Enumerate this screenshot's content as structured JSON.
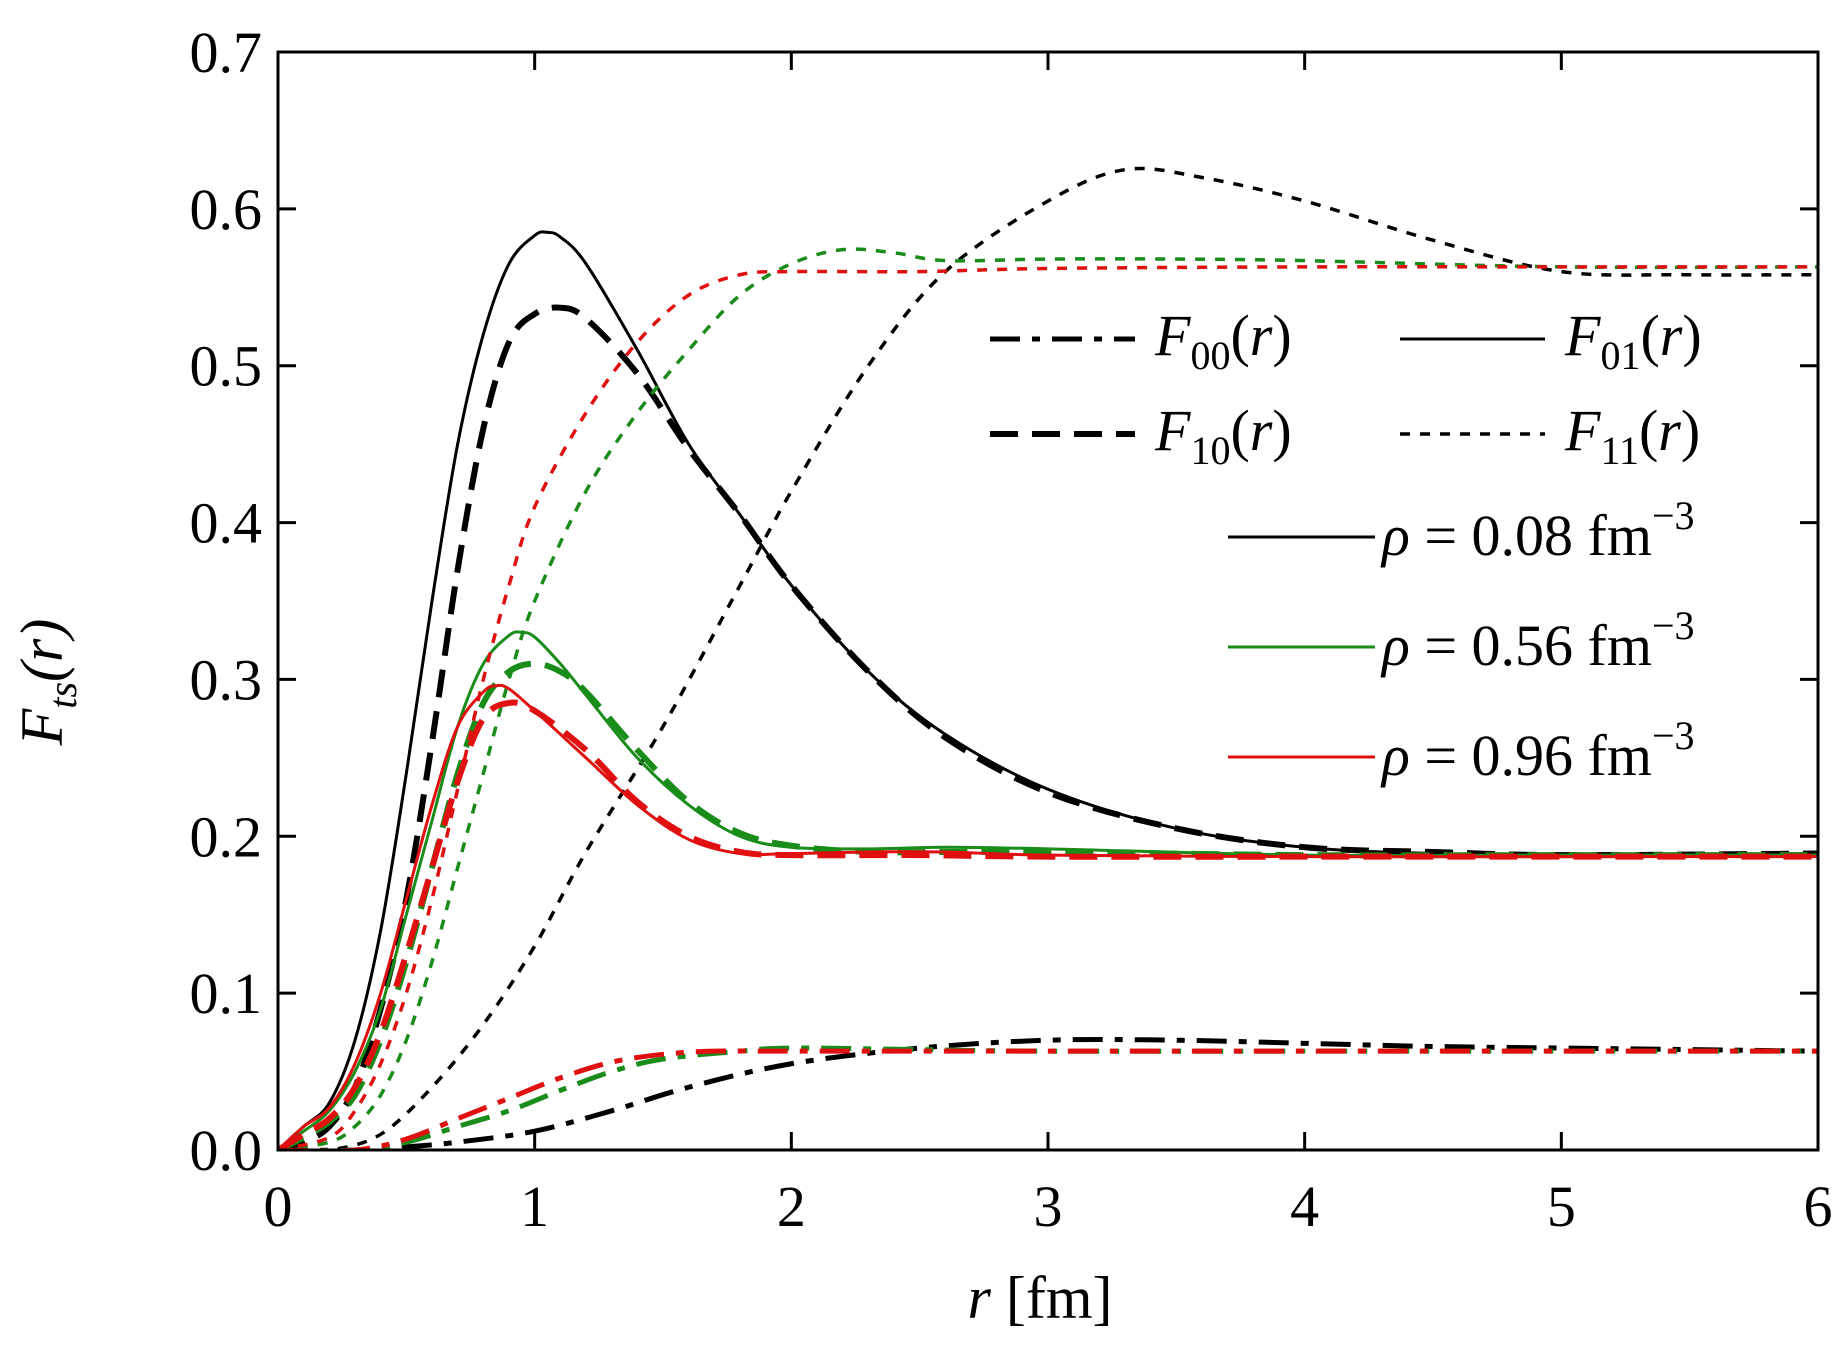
{
  "chart_data": {
    "type": "line",
    "title": "",
    "xlabel": {
      "var": "r",
      "rest": " [fm]"
    },
    "ylabel": {
      "main": "F",
      "sub": "ts",
      "arg": "(r)"
    },
    "xlim": [
      0,
      6
    ],
    "ylim": [
      0,
      0.7
    ],
    "xticks": [
      0,
      1,
      2,
      3,
      4,
      5,
      6
    ],
    "xtick_labels": [
      "0",
      "1",
      "2",
      "3",
      "4",
      "5",
      "6"
    ],
    "yticks": [
      0.0,
      0.1,
      0.2,
      0.3,
      0.4,
      0.5,
      0.6,
      0.7
    ],
    "ytick_labels": [
      "0.0",
      "0.1",
      "0.2",
      "0.3",
      "0.4",
      "0.5",
      "0.6",
      "0.7"
    ],
    "grid": false,
    "colors": {
      "rho_008": "#000000",
      "rho_056": "#1a8c1a",
      "rho_096": "#e01010"
    },
    "legend_channels": [
      {
        "key": "F00",
        "sub": "00",
        "style": "dashdot"
      },
      {
        "key": "F01",
        "sub": "01",
        "style": "solid"
      },
      {
        "key": "F10",
        "sub": "10",
        "style": "dashed"
      },
      {
        "key": "F11",
        "sub": "11",
        "style": "dotted"
      }
    ],
    "legend_densities": [
      {
        "key": "rho_008",
        "value": "0.08",
        "unit": "fm",
        "exp": "−3"
      },
      {
        "key": "rho_056",
        "value": "0.56",
        "unit": "fm",
        "exp": "−3"
      },
      {
        "key": "rho_096",
        "value": "0.96",
        "unit": "fm",
        "exp": "−3"
      }
    ],
    "legend_placement": "right",
    "series": [
      {
        "name": "F01, rho=0.08",
        "channel": "F01",
        "density": "rho_008",
        "points": [
          [
            0,
            0
          ],
          [
            0.1,
            0.015
          ],
          [
            0.2,
            0.03
          ],
          [
            0.3,
            0.07
          ],
          [
            0.4,
            0.14
          ],
          [
            0.5,
            0.24
          ],
          [
            0.6,
            0.35
          ],
          [
            0.7,
            0.45
          ],
          [
            0.8,
            0.52
          ],
          [
            0.9,
            0.565
          ],
          [
            1.0,
            0.583
          ],
          [
            1.05,
            0.585
          ],
          [
            1.1,
            0.582
          ],
          [
            1.2,
            0.565
          ],
          [
            1.4,
            0.51
          ],
          [
            1.6,
            0.45
          ],
          [
            1.8,
            0.405
          ],
          [
            2.0,
            0.36
          ],
          [
            2.3,
            0.305
          ],
          [
            2.6,
            0.265
          ],
          [
            3.0,
            0.23
          ],
          [
            3.5,
            0.205
          ],
          [
            4.0,
            0.193
          ],
          [
            4.5,
            0.189
          ],
          [
            5.0,
            0.188
          ],
          [
            6.0,
            0.189
          ]
        ]
      },
      {
        "name": "F10, rho=0.08",
        "channel": "F10",
        "density": "rho_008",
        "points": [
          [
            0,
            0
          ],
          [
            0.1,
            0.005
          ],
          [
            0.2,
            0.015
          ],
          [
            0.3,
            0.04
          ],
          [
            0.4,
            0.09
          ],
          [
            0.5,
            0.16
          ],
          [
            0.6,
            0.26
          ],
          [
            0.7,
            0.37
          ],
          [
            0.8,
            0.46
          ],
          [
            0.9,
            0.515
          ],
          [
            1.0,
            0.533
          ],
          [
            1.1,
            0.537
          ],
          [
            1.2,
            0.53
          ],
          [
            1.4,
            0.495
          ],
          [
            1.6,
            0.447
          ],
          [
            1.8,
            0.405
          ],
          [
            2.0,
            0.36
          ],
          [
            2.3,
            0.305
          ],
          [
            2.6,
            0.263
          ],
          [
            3.0,
            0.228
          ],
          [
            3.5,
            0.205
          ],
          [
            4.0,
            0.193
          ],
          [
            4.5,
            0.19
          ],
          [
            5.0,
            0.188
          ],
          [
            6.0,
            0.189
          ]
        ]
      },
      {
        "name": "F00, rho=0.08",
        "channel": "F00",
        "density": "rho_008",
        "points": [
          [
            0,
            0
          ],
          [
            0.3,
            0
          ],
          [
            0.5,
            0.002
          ],
          [
            0.7,
            0.005
          ],
          [
            1.0,
            0.012
          ],
          [
            1.3,
            0.025
          ],
          [
            1.6,
            0.04
          ],
          [
            2.0,
            0.055
          ],
          [
            2.5,
            0.065
          ],
          [
            3.0,
            0.07
          ],
          [
            3.5,
            0.07
          ],
          [
            4.0,
            0.068
          ],
          [
            4.5,
            0.066
          ],
          [
            5.0,
            0.065
          ],
          [
            6.0,
            0.063
          ]
        ]
      },
      {
        "name": "F11, rho=0.08",
        "channel": "F11",
        "density": "rho_008",
        "points": [
          [
            0,
            0
          ],
          [
            0.2,
            0
          ],
          [
            0.4,
            0.01
          ],
          [
            0.6,
            0.04
          ],
          [
            0.8,
            0.08
          ],
          [
            1.0,
            0.13
          ],
          [
            1.2,
            0.19
          ],
          [
            1.5,
            0.27
          ],
          [
            1.8,
            0.36
          ],
          [
            2.0,
            0.42
          ],
          [
            2.3,
            0.5
          ],
          [
            2.6,
            0.56
          ],
          [
            3.0,
            0.605
          ],
          [
            3.3,
            0.625
          ],
          [
            3.6,
            0.62
          ],
          [
            4.0,
            0.605
          ],
          [
            4.5,
            0.58
          ],
          [
            5.0,
            0.56
          ],
          [
            5.5,
            0.558
          ],
          [
            6.0,
            0.558
          ]
        ]
      },
      {
        "name": "F01, rho=0.56",
        "channel": "F01",
        "density": "rho_056",
        "points": [
          [
            0,
            0
          ],
          [
            0.1,
            0.012
          ],
          [
            0.2,
            0.025
          ],
          [
            0.3,
            0.05
          ],
          [
            0.4,
            0.09
          ],
          [
            0.5,
            0.15
          ],
          [
            0.6,
            0.21
          ],
          [
            0.7,
            0.27
          ],
          [
            0.8,
            0.31
          ],
          [
            0.9,
            0.328
          ],
          [
            0.95,
            0.33
          ],
          [
            1.0,
            0.327
          ],
          [
            1.1,
            0.31
          ],
          [
            1.2,
            0.29
          ],
          [
            1.4,
            0.25
          ],
          [
            1.6,
            0.22
          ],
          [
            1.8,
            0.2
          ],
          [
            2.0,
            0.193
          ],
          [
            2.3,
            0.192
          ],
          [
            2.6,
            0.193
          ],
          [
            3.0,
            0.192
          ],
          [
            4.0,
            0.188
          ],
          [
            5.0,
            0.188
          ],
          [
            6.0,
            0.188
          ]
        ]
      },
      {
        "name": "F10, rho=0.56",
        "channel": "F10",
        "density": "rho_056",
        "points": [
          [
            0,
            0
          ],
          [
            0.1,
            0.008
          ],
          [
            0.2,
            0.018
          ],
          [
            0.3,
            0.035
          ],
          [
            0.4,
            0.07
          ],
          [
            0.5,
            0.12
          ],
          [
            0.6,
            0.18
          ],
          [
            0.7,
            0.24
          ],
          [
            0.8,
            0.285
          ],
          [
            0.9,
            0.305
          ],
          [
            1.0,
            0.31
          ],
          [
            1.1,
            0.305
          ],
          [
            1.2,
            0.292
          ],
          [
            1.4,
            0.255
          ],
          [
            1.6,
            0.222
          ],
          [
            1.8,
            0.202
          ],
          [
            2.0,
            0.194
          ],
          [
            2.3,
            0.19
          ],
          [
            2.6,
            0.19
          ],
          [
            3.0,
            0.19
          ],
          [
            4.0,
            0.188
          ],
          [
            5.0,
            0.188
          ],
          [
            6.0,
            0.188
          ]
        ]
      },
      {
        "name": "F00, rho=0.56",
        "channel": "F00",
        "density": "rho_056",
        "points": [
          [
            0,
            0
          ],
          [
            0.3,
            0
          ],
          [
            0.5,
            0.005
          ],
          [
            0.7,
            0.015
          ],
          [
            0.9,
            0.025
          ],
          [
            1.1,
            0.038
          ],
          [
            1.3,
            0.05
          ],
          [
            1.5,
            0.058
          ],
          [
            1.8,
            0.063
          ],
          [
            2.0,
            0.065
          ],
          [
            2.5,
            0.064
          ],
          [
            3.0,
            0.063
          ],
          [
            4.0,
            0.063
          ],
          [
            5.0,
            0.063
          ],
          [
            6.0,
            0.063
          ]
        ]
      },
      {
        "name": "F11, rho=0.56",
        "channel": "F11",
        "density": "rho_056",
        "points": [
          [
            0,
            0
          ],
          [
            0.2,
            0.005
          ],
          [
            0.3,
            0.015
          ],
          [
            0.4,
            0.035
          ],
          [
            0.5,
            0.07
          ],
          [
            0.6,
            0.12
          ],
          [
            0.7,
            0.18
          ],
          [
            0.8,
            0.24
          ],
          [
            0.9,
            0.3
          ],
          [
            1.0,
            0.35
          ],
          [
            1.2,
            0.42
          ],
          [
            1.4,
            0.47
          ],
          [
            1.6,
            0.51
          ],
          [
            1.8,
            0.545
          ],
          [
            2.0,
            0.565
          ],
          [
            2.2,
            0.574
          ],
          [
            2.4,
            0.572
          ],
          [
            2.6,
            0.567
          ],
          [
            3.0,
            0.568
          ],
          [
            3.5,
            0.568
          ],
          [
            4.0,
            0.567
          ],
          [
            5.0,
            0.563
          ],
          [
            6.0,
            0.563
          ]
        ]
      },
      {
        "name": "F01, rho=0.96",
        "channel": "F01",
        "density": "rho_096",
        "points": [
          [
            0,
            0
          ],
          [
            0.1,
            0.015
          ],
          [
            0.2,
            0.027
          ],
          [
            0.3,
            0.055
          ],
          [
            0.4,
            0.1
          ],
          [
            0.5,
            0.16
          ],
          [
            0.6,
            0.22
          ],
          [
            0.7,
            0.27
          ],
          [
            0.8,
            0.292
          ],
          [
            0.85,
            0.296
          ],
          [
            0.9,
            0.294
          ],
          [
            1.0,
            0.28
          ],
          [
            1.2,
            0.25
          ],
          [
            1.4,
            0.22
          ],
          [
            1.6,
            0.198
          ],
          [
            1.8,
            0.189
          ],
          [
            2.0,
            0.189
          ],
          [
            2.3,
            0.19
          ],
          [
            2.6,
            0.19
          ],
          [
            3.0,
            0.188
          ],
          [
            4.0,
            0.187
          ],
          [
            5.0,
            0.187
          ],
          [
            6.0,
            0.187
          ]
        ]
      },
      {
        "name": "F10, rho=0.96",
        "channel": "F10",
        "density": "rho_096",
        "points": [
          [
            0,
            0
          ],
          [
            0.1,
            0.01
          ],
          [
            0.2,
            0.02
          ],
          [
            0.3,
            0.04
          ],
          [
            0.4,
            0.075
          ],
          [
            0.5,
            0.125
          ],
          [
            0.6,
            0.18
          ],
          [
            0.7,
            0.235
          ],
          [
            0.8,
            0.275
          ],
          [
            0.9,
            0.285
          ],
          [
            1.0,
            0.28
          ],
          [
            1.2,
            0.255
          ],
          [
            1.4,
            0.222
          ],
          [
            1.6,
            0.2
          ],
          [
            1.8,
            0.19
          ],
          [
            2.0,
            0.188
          ],
          [
            2.5,
            0.188
          ],
          [
            3.0,
            0.187
          ],
          [
            4.0,
            0.187
          ],
          [
            5.0,
            0.187
          ],
          [
            6.0,
            0.187
          ]
        ]
      },
      {
        "name": "F00, rho=0.96",
        "channel": "F00",
        "density": "rho_096",
        "points": [
          [
            0,
            0
          ],
          [
            0.3,
            0
          ],
          [
            0.5,
            0.007
          ],
          [
            0.7,
            0.02
          ],
          [
            0.9,
            0.033
          ],
          [
            1.1,
            0.046
          ],
          [
            1.3,
            0.056
          ],
          [
            1.5,
            0.061
          ],
          [
            1.7,
            0.063
          ],
          [
            2.0,
            0.063
          ],
          [
            3.0,
            0.063
          ],
          [
            4.0,
            0.063
          ],
          [
            5.0,
            0.063
          ],
          [
            6.0,
            0.063
          ]
        ]
      },
      {
        "name": "F11, rho=0.96",
        "channel": "F11",
        "density": "rho_096",
        "points": [
          [
            0,
            0
          ],
          [
            0.2,
            0.008
          ],
          [
            0.3,
            0.025
          ],
          [
            0.4,
            0.055
          ],
          [
            0.5,
            0.1
          ],
          [
            0.6,
            0.16
          ],
          [
            0.7,
            0.23
          ],
          [
            0.8,
            0.3
          ],
          [
            0.9,
            0.36
          ],
          [
            1.0,
            0.41
          ],
          [
            1.2,
            0.47
          ],
          [
            1.4,
            0.515
          ],
          [
            1.6,
            0.545
          ],
          [
            1.8,
            0.558
          ],
          [
            2.0,
            0.56
          ],
          [
            2.5,
            0.56
          ],
          [
            3.0,
            0.562
          ],
          [
            4.0,
            0.563
          ],
          [
            5.0,
            0.563
          ],
          [
            6.0,
            0.563
          ]
        ]
      }
    ]
  }
}
